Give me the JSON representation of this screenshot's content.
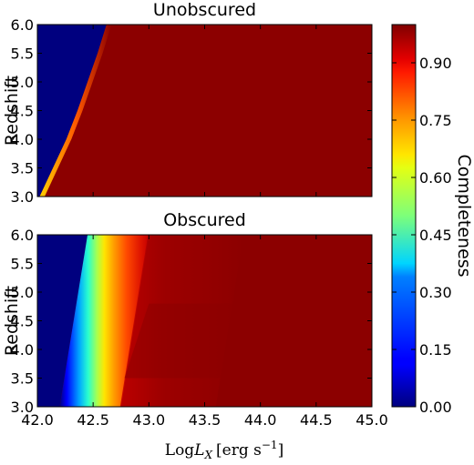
{
  "chart_data": [
    {
      "type": "heatmap",
      "title": "Unobscured",
      "ylabel": "Redshift",
      "xlim": [
        42.0,
        45.0
      ],
      "ylim": [
        3.0,
        6.0
      ],
      "yticks": [
        "3.0",
        "3.5",
        "4.0",
        "4.5",
        "5.0",
        "5.5",
        "6.0"
      ],
      "ytick_values": [
        3.0,
        3.5,
        4.0,
        4.5,
        5.0,
        5.5,
        6.0
      ],
      "boundary_logLx": [
        [
          3.0,
          42.02
        ],
        [
          3.5,
          42.14
        ],
        [
          4.0,
          42.26
        ],
        [
          4.5,
          42.36
        ],
        [
          5.0,
          42.45
        ],
        [
          5.5,
          42.54
        ],
        [
          6.0,
          42.62
        ]
      ],
      "completeness": "0 (blue) below boundary, ~1.0 (dark red) above"
    },
    {
      "type": "heatmap",
      "title": "Obscured",
      "ylabel": "Redshift",
      "xlabel": "Log L_X [erg s^-1]",
      "xlim": [
        42.0,
        45.0
      ],
      "ylim": [
        3.0,
        6.0
      ],
      "xticks": [
        "42.0",
        "42.5",
        "43.0",
        "43.5",
        "44.0",
        "44.5",
        "45.0"
      ],
      "xtick_values": [
        42.0,
        42.5,
        43.0,
        43.5,
        44.0,
        44.5,
        45.0
      ],
      "yticks": [
        "3.0",
        "3.5",
        "4.0",
        "4.5",
        "5.0",
        "5.5",
        "6.0"
      ],
      "ytick_values": [
        3.0,
        3.5,
        4.0,
        4.5,
        5.0,
        5.5,
        6.0
      ],
      "transition_start_logLx": [
        [
          3.0,
          42.2
        ],
        [
          6.0,
          42.45
        ]
      ],
      "transition_width_dex": 0.55,
      "completeness": "rises from 0 to ~0.85 across transition band, approaching 1.0 at high L_X"
    }
  ],
  "colorbar": {
    "label": "Completeness",
    "ticks": [
      "0.00",
      "0.15",
      "0.30",
      "0.45",
      "0.60",
      "0.75",
      "0.90"
    ],
    "tick_values": [
      0.0,
      0.15,
      0.3,
      0.45,
      0.6,
      0.75,
      0.9
    ],
    "range": [
      0.0,
      1.0
    ],
    "colormap": "jet"
  },
  "xlabel": {
    "prefix": "Log",
    "symbol": "L",
    "subscript": "X",
    "units": "[erg s",
    "exponent": "−1",
    "close": "]"
  }
}
